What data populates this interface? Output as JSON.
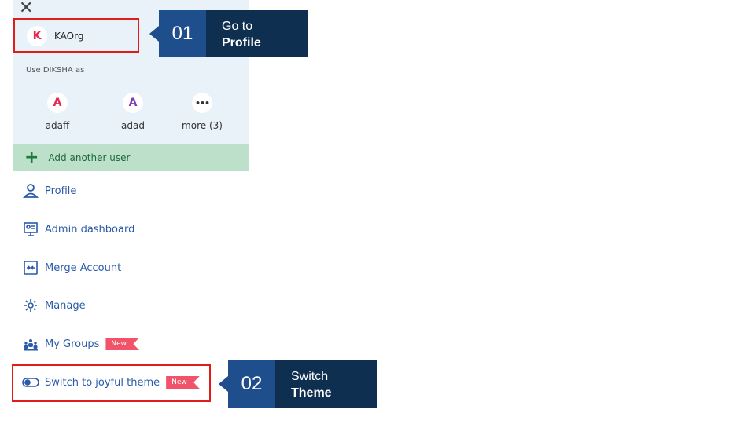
{
  "menu_header": {
    "close_icon": "x-icon"
  },
  "current_user": {
    "initial": "K",
    "initial_color": "#e6264e",
    "name": "KAOrg"
  },
  "use_as_label": "Use DIKSHA as",
  "switch_users": [
    {
      "initial": "A",
      "initial_color": "#e6264e",
      "name": "adaff"
    },
    {
      "initial": "A",
      "initial_color": "#7d3bb2",
      "name": "adad"
    },
    {
      "initial": "•••",
      "initial_color": "#333333",
      "name": "more (3)"
    }
  ],
  "add_user": {
    "label": "Add another user",
    "icon": "plus-icon"
  },
  "menu_items": [
    {
      "label": "Profile",
      "icon": "user-icon"
    },
    {
      "label": "Admin dashboard",
      "icon": "dashboard-icon"
    },
    {
      "label": "Merge Account",
      "icon": "merge-icon"
    },
    {
      "label": "Manage",
      "icon": "gear-icon"
    },
    {
      "label": "My Groups",
      "icon": "groups-icon",
      "badge": "New"
    },
    {
      "label": "Switch to joyful theme",
      "icon": "toggle-icon",
      "badge": "New"
    }
  ],
  "callouts": [
    {
      "number": "01",
      "line1": "Go to",
      "line2": "Profile"
    },
    {
      "number": "02",
      "line1": "Switch",
      "line2": "Theme"
    }
  ],
  "colors": {
    "link_blue": "#2a5aa8",
    "highlight_red": "#e21b1b",
    "callout_num_bg": "#1f4e8c",
    "callout_desc_bg": "#0e2f4f",
    "badge_bg": "#f0536a"
  }
}
